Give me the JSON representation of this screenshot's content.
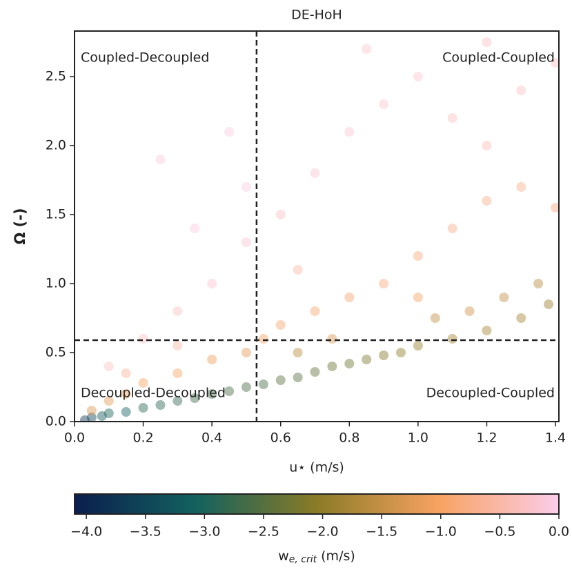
{
  "chart_data": {
    "type": "scatter",
    "title": "DE-HoH",
    "x_label": "u⋆ (m/s)",
    "y_label": "Ω (-)",
    "xlim": [
      0,
      1.41
    ],
    "ylim": [
      0,
      2.83
    ],
    "xticks": [
      {
        "value": 0,
        "label": "0.0"
      },
      {
        "value": 0.2,
        "label": "0.2"
      },
      {
        "value": 0.4,
        "label": "0.4"
      },
      {
        "value": 0.6,
        "label": "0.6"
      },
      {
        "value": 0.8,
        "label": "0.8"
      },
      {
        "value": 1.0,
        "label": "1.0"
      },
      {
        "value": 1.2,
        "label": "1.2"
      },
      {
        "value": 1.4,
        "label": "1.4"
      }
    ],
    "yticks": [
      {
        "value": 0,
        "label": "0.0"
      },
      {
        "value": 0.5,
        "label": "0.5"
      },
      {
        "value": 1.0,
        "label": "1.0"
      },
      {
        "value": 1.5,
        "label": "1.5"
      },
      {
        "value": 2.0,
        "label": "2.0"
      },
      {
        "value": 2.5,
        "label": "2.5"
      }
    ],
    "vline": 0.53,
    "hline": 0.59,
    "quadrant_labels": {
      "top_left": "Coupled-Decoupled",
      "top_right": "Coupled-Coupled",
      "bottom_left": "Decoupled-Decoupled",
      "bottom_right": "Decoupled-Coupled"
    },
    "x": [
      0.03,
      0.05,
      0.08,
      0.1,
      0.15,
      0.2,
      0.25,
      0.3,
      0.35,
      0.4,
      0.45,
      0.5,
      0.55,
      0.6,
      0.65,
      0.7,
      0.75,
      0.8,
      0.85,
      0.9,
      0.95,
      1.0,
      1.1,
      1.2,
      1.3,
      1.38,
      1.35,
      1.25,
      1.15,
      1.05,
      0.05,
      0.1,
      0.15,
      0.2,
      0.3,
      0.4,
      0.5,
      0.55,
      0.6,
      0.7,
      0.8,
      0.9,
      1.0,
      1.1,
      1.2,
      1.3,
      1.4,
      1.0,
      0.75,
      0.65,
      0.1,
      0.2,
      0.3,
      0.4,
      0.5,
      0.6,
      0.7,
      0.8,
      0.9,
      1.0,
      1.1,
      1.2,
      1.3,
      1.4,
      0.5,
      0.35,
      0.25,
      0.45,
      0.85,
      1.2,
      0.65,
      0.3,
      0.15
    ],
    "values": [
      0.01,
      0.03,
      0.04,
      0.06,
      0.07,
      0.1,
      0.12,
      0.15,
      0.17,
      0.2,
      0.22,
      0.25,
      0.27,
      0.3,
      0.32,
      0.36,
      0.4,
      0.42,
      0.45,
      0.48,
      0.5,
      0.55,
      0.6,
      0.66,
      0.75,
      0.85,
      1.0,
      0.9,
      0.8,
      0.75,
      0.08,
      0.15,
      0.2,
      0.28,
      0.35,
      0.45,
      0.5,
      0.6,
      0.7,
      0.8,
      0.9,
      1.0,
      1.2,
      1.4,
      1.6,
      1.7,
      1.55,
      0.9,
      0.6,
      0.5,
      0.4,
      0.6,
      0.8,
      1.0,
      1.3,
      1.5,
      1.8,
      2.1,
      2.3,
      2.5,
      2.2,
      2.0,
      2.4,
      2.6,
      1.7,
      1.4,
      1.9,
      2.1,
      2.7,
      2.75,
      1.1,
      0.55,
      0.35
    ],
    "c": [
      -3.8,
      -3.5,
      -3.2,
      -3.0,
      -3.1,
      -2.9,
      -2.9,
      -2.8,
      -2.7,
      -2.7,
      -2.6,
      -2.6,
      -2.6,
      -2.5,
      -2.5,
      -2.4,
      -2.3,
      -2.3,
      -2.2,
      -2.1,
      -2.0,
      -1.9,
      -1.8,
      -1.8,
      -1.8,
      -1.9,
      -1.6,
      -1.5,
      -1.4,
      -1.5,
      -1.3,
      -1.2,
      -1.1,
      -1.0,
      -1.0,
      -1.1,
      -1.2,
      -1.0,
      -0.9,
      -0.9,
      -0.9,
      -0.8,
      -0.8,
      -0.7,
      -0.7,
      -0.7,
      -0.8,
      -1.0,
      -1.3,
      -1.6,
      -0.3,
      -0.3,
      -0.3,
      -0.2,
      -0.2,
      -0.3,
      -0.2,
      -0.2,
      -0.2,
      -0.2,
      -0.3,
      -0.4,
      -0.3,
      -0.3,
      -0.1,
      -0.1,
      -0.1,
      -0.1,
      -0.2,
      -0.3,
      -0.5,
      -0.5,
      -0.6
    ],
    "colormap": [
      "#0b1e4e",
      "#13615f",
      "#8a7b26",
      "#f7a261",
      "#fbcdea"
    ],
    "clim": [
      -4.1,
      0
    ],
    "colorbar_ticks": [
      {
        "value": -4.0,
        "label": "−4.0"
      },
      {
        "value": -3.5,
        "label": "−3.5"
      },
      {
        "value": -3.0,
        "label": "−3.0"
      },
      {
        "value": -2.5,
        "label": "−2.5"
      },
      {
        "value": -2.0,
        "label": "−2.0"
      },
      {
        "value": -1.5,
        "label": "−1.5"
      },
      {
        "value": -1.0,
        "label": "−1.0"
      },
      {
        "value": -0.5,
        "label": "−0.5"
      },
      {
        "value": 0.0,
        "label": "0.0"
      }
    ],
    "colorbar_label": {
      "base": "w",
      "subscript": "e, crit",
      "unit": " (m/s)"
    }
  }
}
